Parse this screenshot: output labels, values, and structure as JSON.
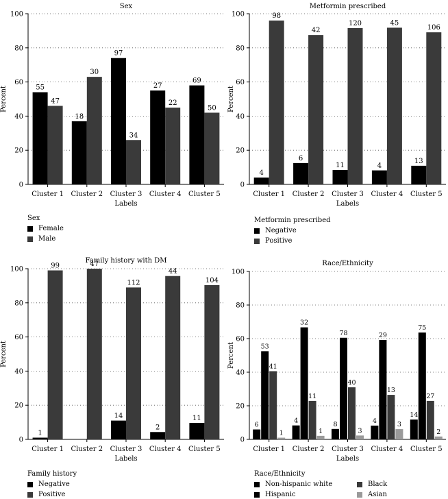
{
  "chart_data": [
    {
      "type": "bar",
      "title": "Sex",
      "xlabel": "Labels",
      "ylabel": "Percent",
      "ylim": [
        0,
        100
      ],
      "yticks": [
        "0",
        "20",
        "40",
        "60",
        "80",
        "100"
      ],
      "categories": [
        "Cluster 1",
        "Cluster 2",
        "Cluster 3",
        "Cluster 4",
        "Cluster 5"
      ],
      "series": [
        {
          "name": "Female",
          "color": "#000000",
          "values": [
            54,
            37,
            74,
            55,
            58
          ],
          "labels": [
            "55",
            "18",
            "97",
            "27",
            "69"
          ]
        },
        {
          "name": "Male",
          "color": "#3a3a3a",
          "values": [
            46,
            63,
            26,
            45,
            42
          ],
          "labels": [
            "47",
            "30",
            "34",
            "22",
            "50"
          ]
        }
      ],
      "legend_title": "Sex",
      "grid": "horizontal-dotted"
    },
    {
      "type": "bar",
      "title": "Metformin prescribed",
      "xlabel": "Labels",
      "ylabel": "Percent",
      "ylim": [
        0,
        100
      ],
      "yticks": [
        "0",
        "20",
        "40",
        "60",
        "80",
        "100"
      ],
      "categories": [
        "Cluster 1",
        "Cluster 2",
        "Cluster 3",
        "Cluster 4",
        "Cluster 5"
      ],
      "series": [
        {
          "name": "Negative",
          "color": "#000000",
          "values": [
            4,
            12.5,
            8.4,
            8.2,
            10.9
          ],
          "labels": [
            "4",
            "6",
            "11",
            "4",
            "13"
          ]
        },
        {
          "name": "Positive",
          "color": "#3a3a3a",
          "values": [
            96,
            87.5,
            91.6,
            91.8,
            89.1
          ],
          "labels": [
            "98",
            "42",
            "120",
            "45",
            "106"
          ]
        }
      ],
      "legend_title": "Metformin prescribed",
      "grid": "horizontal-dotted"
    },
    {
      "type": "bar",
      "title": "Family history with DM",
      "xlabel": "Labels",
      "ylabel": "Percent",
      "ylim": [
        0,
        100
      ],
      "yticks": [
        "0",
        "20",
        "40",
        "60",
        "80",
        "100"
      ],
      "categories": [
        "Cluster 1",
        "Cluster 2",
        "Cluster 3",
        "Cluster 4",
        "Cluster 5"
      ],
      "series": [
        {
          "name": "Negative",
          "color": "#000000",
          "values": [
            1,
            0,
            11,
            4.3,
            9.6
          ],
          "labels": [
            "1",
            "",
            "14",
            "2",
            "11"
          ]
        },
        {
          "name": "Positive",
          "color": "#3a3a3a",
          "values": [
            99,
            100,
            89,
            95.7,
            90.4
          ],
          "labels": [
            "99",
            "47",
            "112",
            "44",
            "104"
          ]
        }
      ],
      "legend_title": "Family history",
      "grid": "horizontal-dotted"
    },
    {
      "type": "bar",
      "title": "Race/Ethnicity",
      "xlabel": "Labels",
      "ylabel": "Percent",
      "ylim": [
        0,
        100
      ],
      "yticks": [
        "0",
        "20",
        "40",
        "60",
        "80",
        "100"
      ],
      "categories": [
        "Cluster 1",
        "Cluster 2",
        "Cluster 3",
        "Cluster 4",
        "Cluster 5"
      ],
      "series": [
        {
          "name": "Non-hispanic white",
          "color": "#000000",
          "values": [
            5.9,
            8.3,
            6.2,
            8.2,
            11.8
          ],
          "labels": [
            "6",
            "4",
            "8",
            "4",
            "14"
          ]
        },
        {
          "name": "Hispanic",
          "color": "#000000",
          "values": [
            52.5,
            66.7,
            60.5,
            59.2,
            63.6
          ],
          "labels": [
            "53",
            "32",
            "78",
            "29",
            "75"
          ]
        },
        {
          "name": "Black",
          "color": "#3a3a3a",
          "values": [
            40.6,
            22.9,
            31,
            26.5,
            22.9
          ],
          "labels": [
            "41",
            "11",
            "40",
            "13",
            "27"
          ]
        },
        {
          "name": "Asian",
          "color": "#9a9a9a",
          "values": [
            1,
            2.1,
            2.3,
            6.1,
            1.7
          ],
          "labels": [
            "1",
            "1",
            "3",
            "3",
            "2"
          ]
        }
      ],
      "legend_title": "Race/Ethnicity",
      "grid": "horizontal-dotted"
    }
  ]
}
